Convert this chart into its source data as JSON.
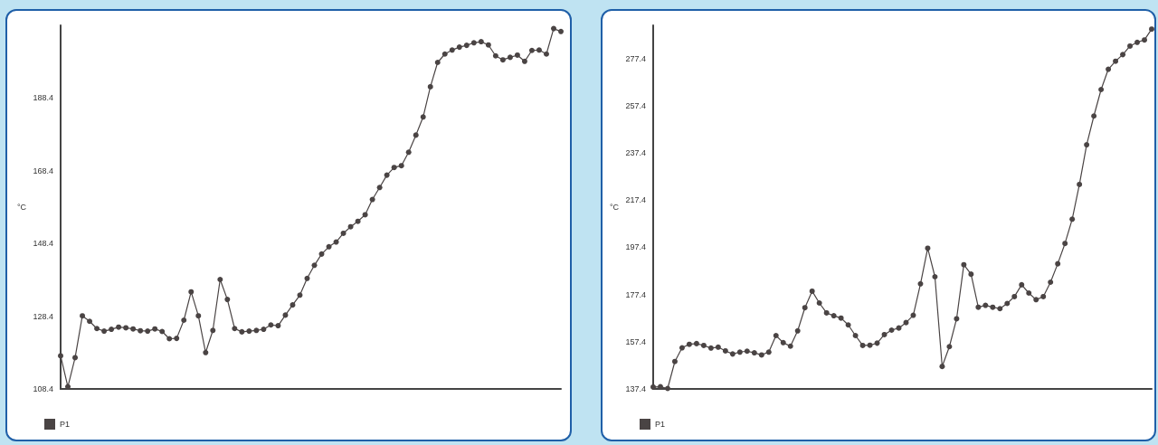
{
  "chart_data": [
    {
      "type": "line",
      "ylabel": "°C",
      "ylim": [
        108.4,
        208.4
      ],
      "yticks": [
        108.4,
        128.4,
        148.4,
        168.4,
        188.4
      ],
      "tick_labels": "y",
      "grid": false,
      "legend": "bottom left",
      "marker": "circle",
      "line_style": "solid",
      "categories": [
        null,
        null,
        null,
        null,
        null,
        null,
        null,
        null,
        null,
        null,
        null,
        null,
        null,
        null,
        null,
        null,
        null,
        null,
        null,
        null,
        null,
        null,
        null,
        null,
        null,
        null,
        null,
        null,
        null,
        null,
        null,
        null,
        null,
        null,
        null,
        null,
        null,
        null,
        null,
        null,
        null,
        null,
        null,
        null,
        null,
        null,
        null,
        null,
        null,
        null,
        null,
        null,
        null,
        null,
        null,
        null,
        null,
        null,
        null,
        null,
        null,
        null,
        null,
        null,
        null,
        null,
        null,
        null,
        null,
        null
      ],
      "series": [
        {
          "name": "P1",
          "color": "#4a4444",
          "values": [
            117.5,
            109.0,
            117,
            128.5,
            127,
            125,
            124.3,
            124.8,
            125.4,
            125.2,
            124.9,
            124.4,
            124.3,
            124.9,
            124.2,
            122.2,
            122.3,
            127.3,
            135.1,
            128.5,
            118.4,
            124.5,
            138.5,
            133,
            125,
            124.1,
            124.3,
            124.5,
            124.8,
            126,
            125.8,
            128.7,
            131.5,
            134.2,
            138.8,
            142.4,
            145.5,
            147.5,
            148.8,
            151.2,
            153,
            154.5,
            156.3,
            160.5,
            163.8,
            167.2,
            169.3,
            169.8,
            173.5,
            178.2,
            183.2,
            191.5,
            198.2,
            200.5,
            201.6,
            202.4,
            202.9,
            203.6,
            203.9,
            203.0,
            200,
            198.9,
            199.6,
            200.2,
            198.5,
            201.5,
            201.6,
            200.5,
            207.5,
            206.7
          ]
        }
      ]
    },
    {
      "type": "line",
      "ylabel": "°C",
      "ylim": [
        137.4,
        291.4
      ],
      "yticks": [
        137.4,
        157.4,
        177.4,
        197.4,
        217.4,
        237.4,
        257.4,
        277.4
      ],
      "tick_labels": "y",
      "grid": false,
      "legend": "bottom left",
      "marker": "circle",
      "line_style": "solid",
      "categories": [
        null,
        null,
        null,
        null,
        null,
        null,
        null,
        null,
        null,
        null,
        null,
        null,
        null,
        null,
        null,
        null,
        null,
        null,
        null,
        null,
        null,
        null,
        null,
        null,
        null,
        null,
        null,
        null,
        null,
        null,
        null,
        null,
        null,
        null,
        null,
        null,
        null,
        null,
        null,
        null,
        null,
        null,
        null,
        null,
        null,
        null,
        null,
        null,
        null,
        null,
        null,
        null,
        null,
        null,
        null,
        null,
        null,
        null,
        null,
        null,
        null,
        null,
        null,
        null,
        null,
        null,
        null,
        null,
        null,
        null
      ],
      "series": [
        {
          "name": "P1",
          "color": "#4a4444",
          "values": [
            138.2,
            138.3,
            137.6,
            149,
            154.8,
            156.3,
            156.6,
            155.8,
            154.7,
            155.1,
            153.5,
            152.2,
            153,
            153.4,
            152.7,
            151.8,
            153,
            160,
            157,
            155.5,
            162,
            171.8,
            178.8,
            173.8,
            169.6,
            168.4,
            167.4,
            164.5,
            160,
            155.8,
            155.9,
            156.8,
            160.4,
            162.3,
            163.2,
            165.5,
            168.6,
            181.9,
            197,
            184.9,
            146.9,
            155.3,
            167.1,
            190,
            186,
            172,
            172.8,
            172,
            171.4,
            173.6,
            176.5,
            181.5,
            178,
            175.2,
            176.5,
            182.6,
            190.4,
            199,
            209.3,
            224,
            240.8,
            253,
            264.2,
            272.8,
            276.2,
            279,
            282.6,
            284.2,
            285.2,
            289.8
          ]
        }
      ]
    }
  ]
}
